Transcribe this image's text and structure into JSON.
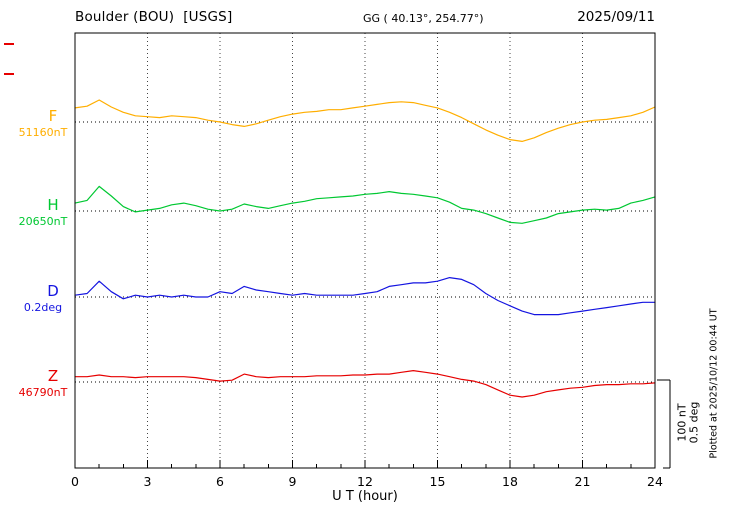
{
  "header": {
    "station": "Boulder (BOU)  [USGS]",
    "coords": "GG ( 40.13°, 254.77°)",
    "date": "2025/09/11"
  },
  "axis": {
    "xlabel": "U T (hour)",
    "tick_labels": [
      "0",
      "3",
      "6",
      "9",
      "12",
      "15",
      "18",
      "21",
      "24"
    ]
  },
  "right_side": {
    "scale_label_nt": "100 nT",
    "scale_label_deg": "0.5 deg",
    "plotted_at": "Plotted at 2025/10/12 00:44 UT"
  },
  "chart_data": {
    "type": "line",
    "title": "Boulder (BOU) [USGS] magnetogram",
    "date": "2025/09/11",
    "xlabel": "U T (hour)",
    "x_range": [
      0,
      24
    ],
    "x_ticks": [
      0,
      3,
      6,
      9,
      12,
      15,
      18,
      21,
      24
    ],
    "x_step_hours": 0.5,
    "grid": {
      "vertical_dotted_every_hours": 3,
      "horizontal_dotted_baselines": true
    },
    "scale": {
      "nT_per_division": 100,
      "deg_per_division": 0.5
    },
    "series": [
      {
        "name": "F",
        "unit": "nT",
        "color": "#ffae00",
        "baseline": 51160,
        "baseline_label": "51160nT",
        "values": [
          51176,
          51178,
          51185,
          51177,
          51171,
          51167,
          51166,
          51165,
          51167,
          51166,
          51165,
          51162,
          51160,
          51157,
          51155,
          51158,
          51162,
          51166,
          51169,
          51171,
          51172,
          51174,
          51174,
          51176,
          51178,
          51180,
          51182,
          51183,
          51182,
          51179,
          51176,
          51171,
          51165,
          51158,
          51151,
          51145,
          51140,
          51138,
          51142,
          51148,
          51153,
          51157,
          51160,
          51162,
          51163,
          51165,
          51167,
          51171,
          51177
        ]
      },
      {
        "name": "H",
        "unit": "nT",
        "color": "#00c832",
        "baseline": 20650,
        "baseline_label": "20650nT",
        "values": [
          20659,
          20662,
          20678,
          20667,
          20655,
          20649,
          20651,
          20653,
          20657,
          20659,
          20656,
          20652,
          20650,
          20652,
          20658,
          20655,
          20653,
          20656,
          20659,
          20661,
          20664,
          20665,
          20666,
          20667,
          20669,
          20670,
          20672,
          20670,
          20669,
          20667,
          20665,
          20660,
          20653,
          20651,
          20647,
          20642,
          20637,
          20636,
          20639,
          20642,
          20647,
          20649,
          20651,
          20652,
          20651,
          20653,
          20659,
          20662,
          20666
        ]
      },
      {
        "name": "D",
        "unit": "deg",
        "color": "#1414e0",
        "baseline": 0.2,
        "baseline_label": "0.2deg",
        "values": [
          0.21,
          0.22,
          0.29,
          0.23,
          0.19,
          0.21,
          0.2,
          0.21,
          0.2,
          0.21,
          0.2,
          0.2,
          0.23,
          0.22,
          0.26,
          0.24,
          0.23,
          0.22,
          0.21,
          0.22,
          0.21,
          0.21,
          0.21,
          0.21,
          0.22,
          0.23,
          0.26,
          0.27,
          0.28,
          0.28,
          0.29,
          0.31,
          0.3,
          0.27,
          0.22,
          0.18,
          0.15,
          0.12,
          0.1,
          0.1,
          0.1,
          0.11,
          0.12,
          0.13,
          0.14,
          0.15,
          0.16,
          0.17,
          0.17
        ]
      },
      {
        "name": "Z",
        "unit": "nT",
        "color": "#e60000",
        "baseline": 46790,
        "baseline_label": "46790nT",
        "values": [
          46796,
          46796,
          46798,
          46796,
          46796,
          46795,
          46796,
          46796,
          46796,
          46796,
          46795,
          46793,
          46791,
          46792,
          46799,
          46796,
          46795,
          46796,
          46796,
          46796,
          46797,
          46797,
          46797,
          46798,
          46798,
          46799,
          46799,
          46801,
          46803,
          46801,
          46799,
          46796,
          46793,
          46791,
          46787,
          46781,
          46775,
          46773,
          46775,
          46779,
          46781,
          46783,
          46784,
          46786,
          46787,
          46787,
          46788,
          46788,
          46789
        ]
      }
    ]
  }
}
